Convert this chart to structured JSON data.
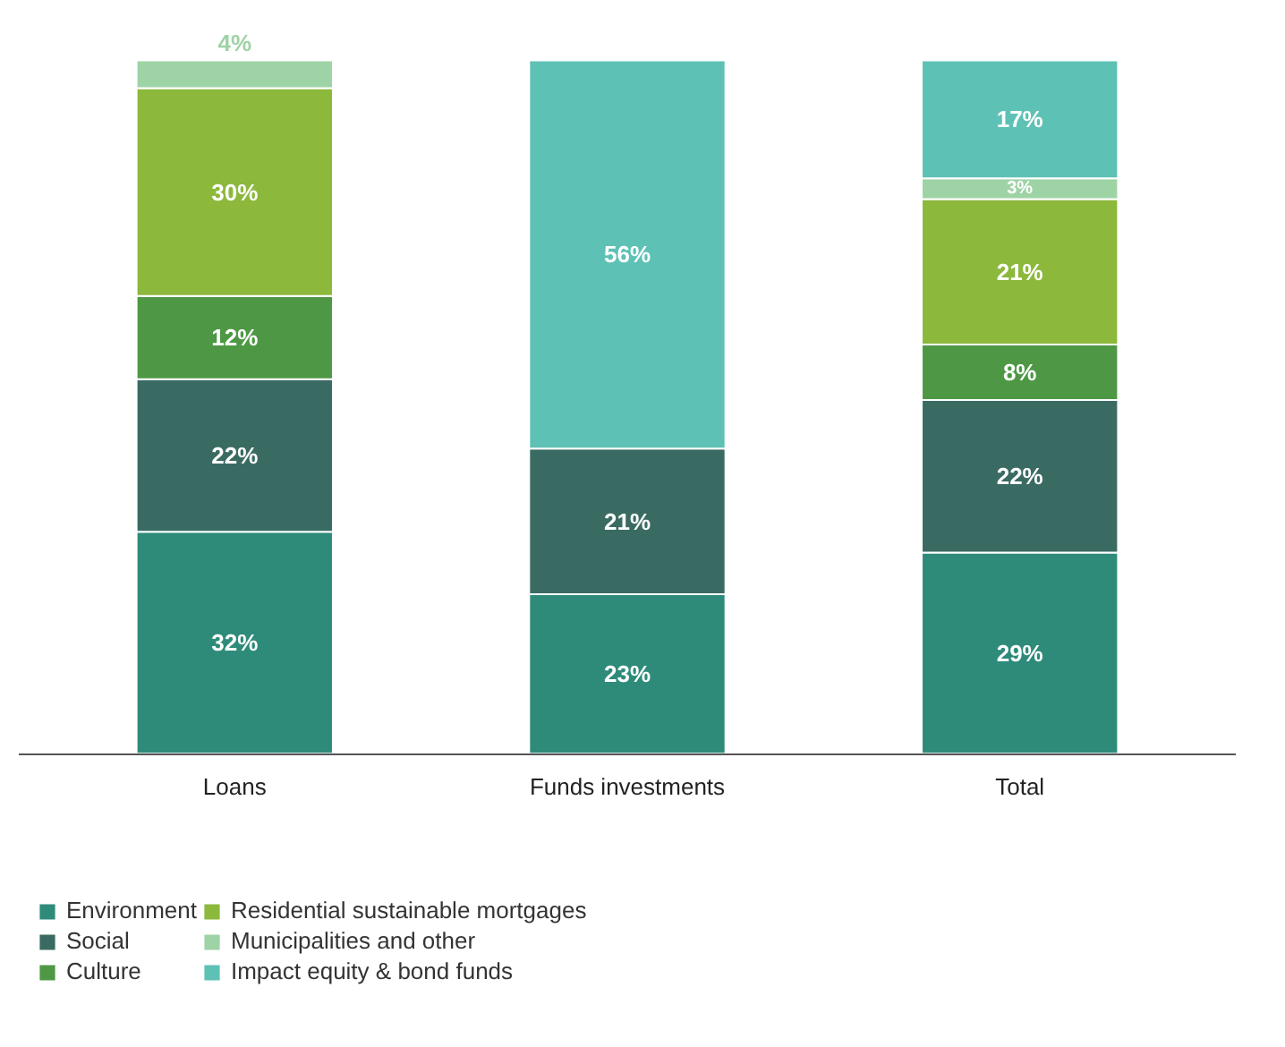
{
  "chart_data": {
    "type": "bar",
    "stacked": true,
    "legend": "bottom",
    "grid": false,
    "tick_labels": "x",
    "categories": [
      "Loans",
      "Funds investments",
      "Total"
    ],
    "series": [
      {
        "name": "Environment",
        "color": "#2e8b7a",
        "values": [
          32,
          23,
          29
        ],
        "value_labels": [
          "32%",
          "23%",
          "29%"
        ]
      },
      {
        "name": "Social",
        "color": "#3a6b63",
        "values": [
          22,
          21,
          22
        ],
        "value_labels": [
          "22%",
          "21%",
          "22%"
        ]
      },
      {
        "name": "Culture",
        "color": "#4e9845",
        "values": [
          12,
          null,
          8
        ],
        "value_labels": [
          "12%",
          null,
          "8%"
        ]
      },
      {
        "name": "Residential sustainable mortgages",
        "color": "#8cb83c",
        "values": [
          30,
          null,
          21
        ],
        "value_labels": [
          "30%",
          null,
          "21%"
        ]
      },
      {
        "name": "Municipalities and other",
        "color": "#9ed3a6",
        "values": [
          4,
          null,
          3
        ],
        "value_labels": [
          "4%",
          null,
          "3%"
        ]
      },
      {
        "name": "Impact equity & bond funds",
        "color": "#5ec1b5",
        "values": [
          null,
          56,
          17
        ],
        "value_labels": [
          null,
          "56%",
          "17%"
        ]
      }
    ]
  }
}
